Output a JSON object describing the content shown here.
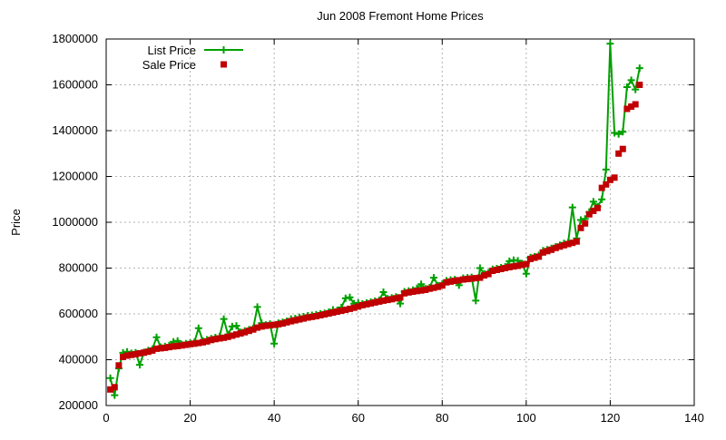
{
  "page": {
    "background": "#FFFFFF"
  },
  "chart_data": {
    "type": "line",
    "title": "Jun 2008 Fremont Home Prices",
    "xlabel": "",
    "ylabel": "Price",
    "xlim": [
      0,
      140
    ],
    "ylim": [
      200000,
      1800000
    ],
    "xticks": [
      0,
      20,
      40,
      60,
      80,
      100,
      120,
      140
    ],
    "yticks": [
      200000,
      400000,
      600000,
      800000,
      1000000,
      1200000,
      1400000,
      1600000,
      1800000
    ],
    "grid": true,
    "grid_color": "#B3B3B3",
    "legend_position": "top-left",
    "x": [
      1,
      2,
      3,
      4,
      5,
      6,
      7,
      8,
      9,
      10,
      11,
      12,
      13,
      14,
      15,
      16,
      17,
      18,
      19,
      20,
      21,
      22,
      23,
      24,
      25,
      26,
      27,
      28,
      29,
      30,
      31,
      32,
      33,
      34,
      35,
      36,
      37,
      38,
      39,
      40,
      41,
      42,
      43,
      44,
      45,
      46,
      47,
      48,
      49,
      50,
      51,
      52,
      53,
      54,
      55,
      56,
      57,
      58,
      59,
      60,
      61,
      62,
      63,
      64,
      65,
      66,
      67,
      68,
      69,
      70,
      71,
      72,
      73,
      74,
      75,
      76,
      77,
      78,
      79,
      80,
      81,
      82,
      83,
      84,
      85,
      86,
      87,
      88,
      89,
      90,
      91,
      92,
      93,
      94,
      95,
      96,
      97,
      98,
      99,
      100,
      101,
      102,
      103,
      104,
      105,
      106,
      107,
      108,
      109,
      110,
      111,
      112,
      113,
      114,
      115,
      116,
      117,
      118,
      119,
      120,
      121,
      122,
      123,
      124,
      125,
      126,
      127
    ],
    "series": [
      {
        "name": "List Price",
        "style": "line-with-plus-markers",
        "color": "#00A000",
        "values": [
          320000,
          245000,
          362000,
          430000,
          435000,
          428000,
          431000,
          378000,
          433000,
          440000,
          446000,
          498000,
          455000,
          458000,
          462000,
          478000,
          482000,
          466000,
          470000,
          473000,
          477000,
          538000,
          482000,
          487000,
          492000,
          497000,
          502000,
          578000,
          510000,
          545000,
          548000,
          520000,
          526000,
          531000,
          537000,
          630000,
          560000,
          552000,
          556000,
          470000,
          560000,
          563000,
          568000,
          578000,
          580000,
          585000,
          588000,
          592000,
          594000,
          597000,
          600000,
          603000,
          608000,
          618000,
          616000,
          628000,
          668000,
          672000,
          645000,
          648000,
          644000,
          648000,
          652000,
          656000,
          660000,
          695000,
          666000,
          670000,
          674000,
          645000,
          697000,
          700000,
          704000,
          712000,
          730000,
          710000,
          715000,
          758000,
          724000,
          730000,
          745000,
          748000,
          750000,
          725000,
          756000,
          758000,
          760000,
          658000,
          800000,
          775000,
          780000,
          795000,
          798000,
          802000,
          806000,
          830000,
          835000,
          832000,
          820000,
          775000,
          846000,
          850000,
          856000,
          876000,
          880000,
          886000,
          893000,
          900000,
          908000,
          912000,
          1065000,
          930000,
          1010000,
          1015000,
          1045000,
          1090000,
          1068000,
          1100000,
          1230000,
          1780000,
          1390000,
          1385000,
          1395000,
          1590000,
          1620000,
          1580000,
          1673000
        ]
      },
      {
        "name": "Sale Price",
        "style": "filled-squares",
        "color": "#C00000",
        "values": [
          270000,
          280000,
          375000,
          412000,
          418000,
          421000,
          424000,
          428000,
          431000,
          435000,
          440000,
          448000,
          450000,
          452000,
          455000,
          458000,
          460000,
          462000,
          465000,
          468000,
          470000,
          473000,
          476000,
          480000,
          486000,
          490000,
          493000,
          496000,
          500000,
          505000,
          510000,
          515000,
          520000,
          526000,
          532000,
          540000,
          545000,
          548000,
          550000,
          552000,
          555000,
          558000,
          563000,
          568000,
          572000,
          576000,
          580000,
          584000,
          587000,
          590000,
          594000,
          598000,
          602000,
          606000,
          610000,
          614000,
          618000,
          622000,
          627000,
          632000,
          638000,
          642000,
          646000,
          650000,
          654000,
          658000,
          661000,
          664000,
          668000,
          672000,
          690000,
          694000,
          697000,
          700000,
          702000,
          705000,
          710000,
          714000,
          718000,
          724000,
          738000,
          741000,
          744000,
          747000,
          750000,
          752000,
          754000,
          756000,
          758000,
          768000,
          774000,
          788000,
          792000,
          796000,
          800000,
          804000,
          807000,
          810000,
          814000,
          818000,
          840000,
          845000,
          850000,
          868000,
          874000,
          880000,
          888000,
          894000,
          900000,
          905000,
          910000,
          916000,
          975000,
          995000,
          1035000,
          1050000,
          1062000,
          1150000,
          1165000,
          1185000,
          1195000,
          1300000,
          1320000,
          1495000,
          1505000,
          1515000,
          1600000
        ]
      }
    ]
  }
}
